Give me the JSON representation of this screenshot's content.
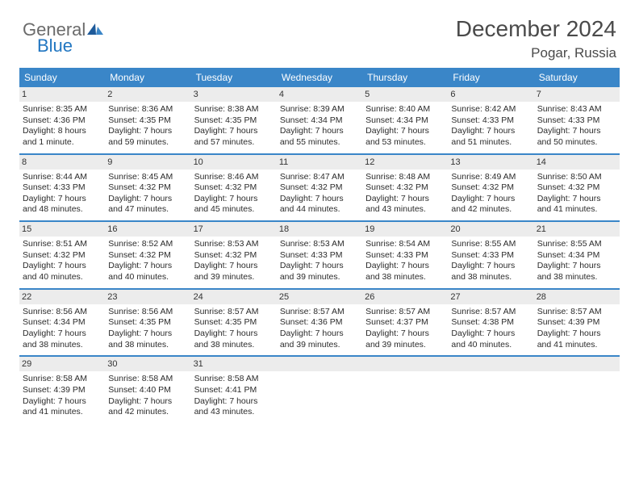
{
  "logo": {
    "general": "General",
    "blue": "Blue"
  },
  "title": "December 2024",
  "location": "Pogar, Russia",
  "colors": {
    "header_bg": "#3a86c8",
    "header_fg": "#ffffff",
    "daynum_bg": "#ececec",
    "border": "#3a86c8",
    "text": "#2b2b2b",
    "title": "#4a4a4a"
  },
  "day_headers": [
    "Sunday",
    "Monday",
    "Tuesday",
    "Wednesday",
    "Thursday",
    "Friday",
    "Saturday"
  ],
  "weeks": [
    [
      {
        "n": "1",
        "sr": "8:35 AM",
        "ss": "4:36 PM",
        "dl": "8 hours and 1 minute."
      },
      {
        "n": "2",
        "sr": "8:36 AM",
        "ss": "4:35 PM",
        "dl": "7 hours and 59 minutes."
      },
      {
        "n": "3",
        "sr": "8:38 AM",
        "ss": "4:35 PM",
        "dl": "7 hours and 57 minutes."
      },
      {
        "n": "4",
        "sr": "8:39 AM",
        "ss": "4:34 PM",
        "dl": "7 hours and 55 minutes."
      },
      {
        "n": "5",
        "sr": "8:40 AM",
        "ss": "4:34 PM",
        "dl": "7 hours and 53 minutes."
      },
      {
        "n": "6",
        "sr": "8:42 AM",
        "ss": "4:33 PM",
        "dl": "7 hours and 51 minutes."
      },
      {
        "n": "7",
        "sr": "8:43 AM",
        "ss": "4:33 PM",
        "dl": "7 hours and 50 minutes."
      }
    ],
    [
      {
        "n": "8",
        "sr": "8:44 AM",
        "ss": "4:33 PM",
        "dl": "7 hours and 48 minutes."
      },
      {
        "n": "9",
        "sr": "8:45 AM",
        "ss": "4:32 PM",
        "dl": "7 hours and 47 minutes."
      },
      {
        "n": "10",
        "sr": "8:46 AM",
        "ss": "4:32 PM",
        "dl": "7 hours and 45 minutes."
      },
      {
        "n": "11",
        "sr": "8:47 AM",
        "ss": "4:32 PM",
        "dl": "7 hours and 44 minutes."
      },
      {
        "n": "12",
        "sr": "8:48 AM",
        "ss": "4:32 PM",
        "dl": "7 hours and 43 minutes."
      },
      {
        "n": "13",
        "sr": "8:49 AM",
        "ss": "4:32 PM",
        "dl": "7 hours and 42 minutes."
      },
      {
        "n": "14",
        "sr": "8:50 AM",
        "ss": "4:32 PM",
        "dl": "7 hours and 41 minutes."
      }
    ],
    [
      {
        "n": "15",
        "sr": "8:51 AM",
        "ss": "4:32 PM",
        "dl": "7 hours and 40 minutes."
      },
      {
        "n": "16",
        "sr": "8:52 AM",
        "ss": "4:32 PM",
        "dl": "7 hours and 40 minutes."
      },
      {
        "n": "17",
        "sr": "8:53 AM",
        "ss": "4:32 PM",
        "dl": "7 hours and 39 minutes."
      },
      {
        "n": "18",
        "sr": "8:53 AM",
        "ss": "4:33 PM",
        "dl": "7 hours and 39 minutes."
      },
      {
        "n": "19",
        "sr": "8:54 AM",
        "ss": "4:33 PM",
        "dl": "7 hours and 38 minutes."
      },
      {
        "n": "20",
        "sr": "8:55 AM",
        "ss": "4:33 PM",
        "dl": "7 hours and 38 minutes."
      },
      {
        "n": "21",
        "sr": "8:55 AM",
        "ss": "4:34 PM",
        "dl": "7 hours and 38 minutes."
      }
    ],
    [
      {
        "n": "22",
        "sr": "8:56 AM",
        "ss": "4:34 PM",
        "dl": "7 hours and 38 minutes."
      },
      {
        "n": "23",
        "sr": "8:56 AM",
        "ss": "4:35 PM",
        "dl": "7 hours and 38 minutes."
      },
      {
        "n": "24",
        "sr": "8:57 AM",
        "ss": "4:35 PM",
        "dl": "7 hours and 38 minutes."
      },
      {
        "n": "25",
        "sr": "8:57 AM",
        "ss": "4:36 PM",
        "dl": "7 hours and 39 minutes."
      },
      {
        "n": "26",
        "sr": "8:57 AM",
        "ss": "4:37 PM",
        "dl": "7 hours and 39 minutes."
      },
      {
        "n": "27",
        "sr": "8:57 AM",
        "ss": "4:38 PM",
        "dl": "7 hours and 40 minutes."
      },
      {
        "n": "28",
        "sr": "8:57 AM",
        "ss": "4:39 PM",
        "dl": "7 hours and 41 minutes."
      }
    ],
    [
      {
        "n": "29",
        "sr": "8:58 AM",
        "ss": "4:39 PM",
        "dl": "7 hours and 41 minutes."
      },
      {
        "n": "30",
        "sr": "8:58 AM",
        "ss": "4:40 PM",
        "dl": "7 hours and 42 minutes."
      },
      {
        "n": "31",
        "sr": "8:58 AM",
        "ss": "4:41 PM",
        "dl": "7 hours and 43 minutes."
      },
      {
        "blank": true
      },
      {
        "blank": true
      },
      {
        "blank": true
      },
      {
        "blank": true
      }
    ]
  ],
  "labels": {
    "sunrise": "Sunrise: ",
    "sunset": "Sunset: ",
    "daylight": "Daylight: "
  }
}
